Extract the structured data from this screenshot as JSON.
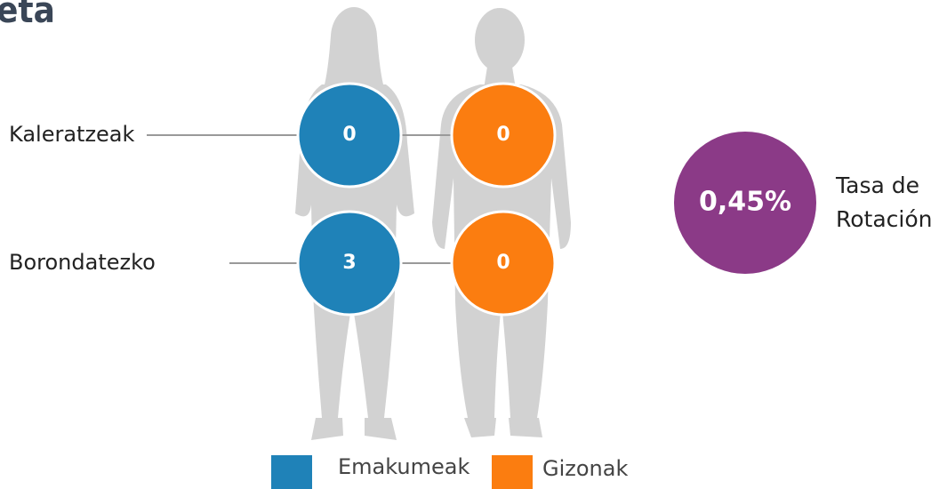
{
  "title": "eta",
  "rows": [
    {
      "label": "Kaleratzeak",
      "women": "0",
      "men": "0"
    },
    {
      "label": "Borondatezko",
      "women": "3",
      "men": "0"
    }
  ],
  "rate": {
    "value": "0,45%",
    "label": [
      "Tasa de",
      "Rotación"
    ],
    "color": "#8b3a87"
  },
  "legend": [
    {
      "label": "Emakumeak",
      "color": "#1f82b8"
    },
    {
      "label": "Gizonak",
      "color": "#fb7d10"
    }
  ]
}
